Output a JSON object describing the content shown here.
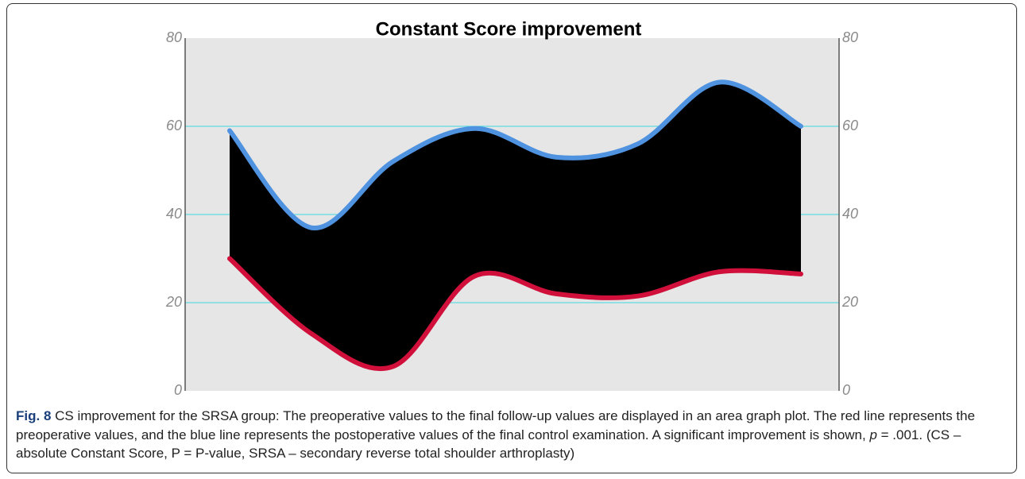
{
  "chart_data": {
    "type": "area",
    "title": "Constant Score improvement",
    "categories": [
      null,
      null,
      null,
      null,
      null,
      null,
      null,
      null
    ],
    "series": [
      {
        "color": "#4f93e0",
        "values": [
          59,
          37,
          52,
          59.5,
          53,
          56,
          70,
          60
        ]
      },
      {
        "color": "#d0103a",
        "values": [
          30,
          13,
          5.5,
          26,
          22,
          21.5,
          27,
          26.5
        ]
      }
    ],
    "fill_between": "#000000",
    "ylim": [
      0,
      80
    ],
    "yticks": [
      0,
      20,
      40,
      60,
      80
    ],
    "y2lim": [
      0,
      80
    ],
    "y2ticks": [
      0,
      20,
      40,
      60,
      80
    ],
    "grid": true,
    "grid_color": "#3fd8e0",
    "plot_background": "#e6e6e6"
  },
  "caption": {
    "label": "Fig. 8",
    "text_before": "CS improvement for the SRSA group: The preoperative values to the final follow-up values are displayed in an area graph plot. The red line represents the preoperative values, and the blue line represents the postoperative values of the final control examination. A significant improvement is shown, ",
    "italic": "p",
    "text_after": " = .001. (CS – absolute Constant Score, P = P-value, SRSA – secondary reverse total shoulder arthroplasty)"
  }
}
